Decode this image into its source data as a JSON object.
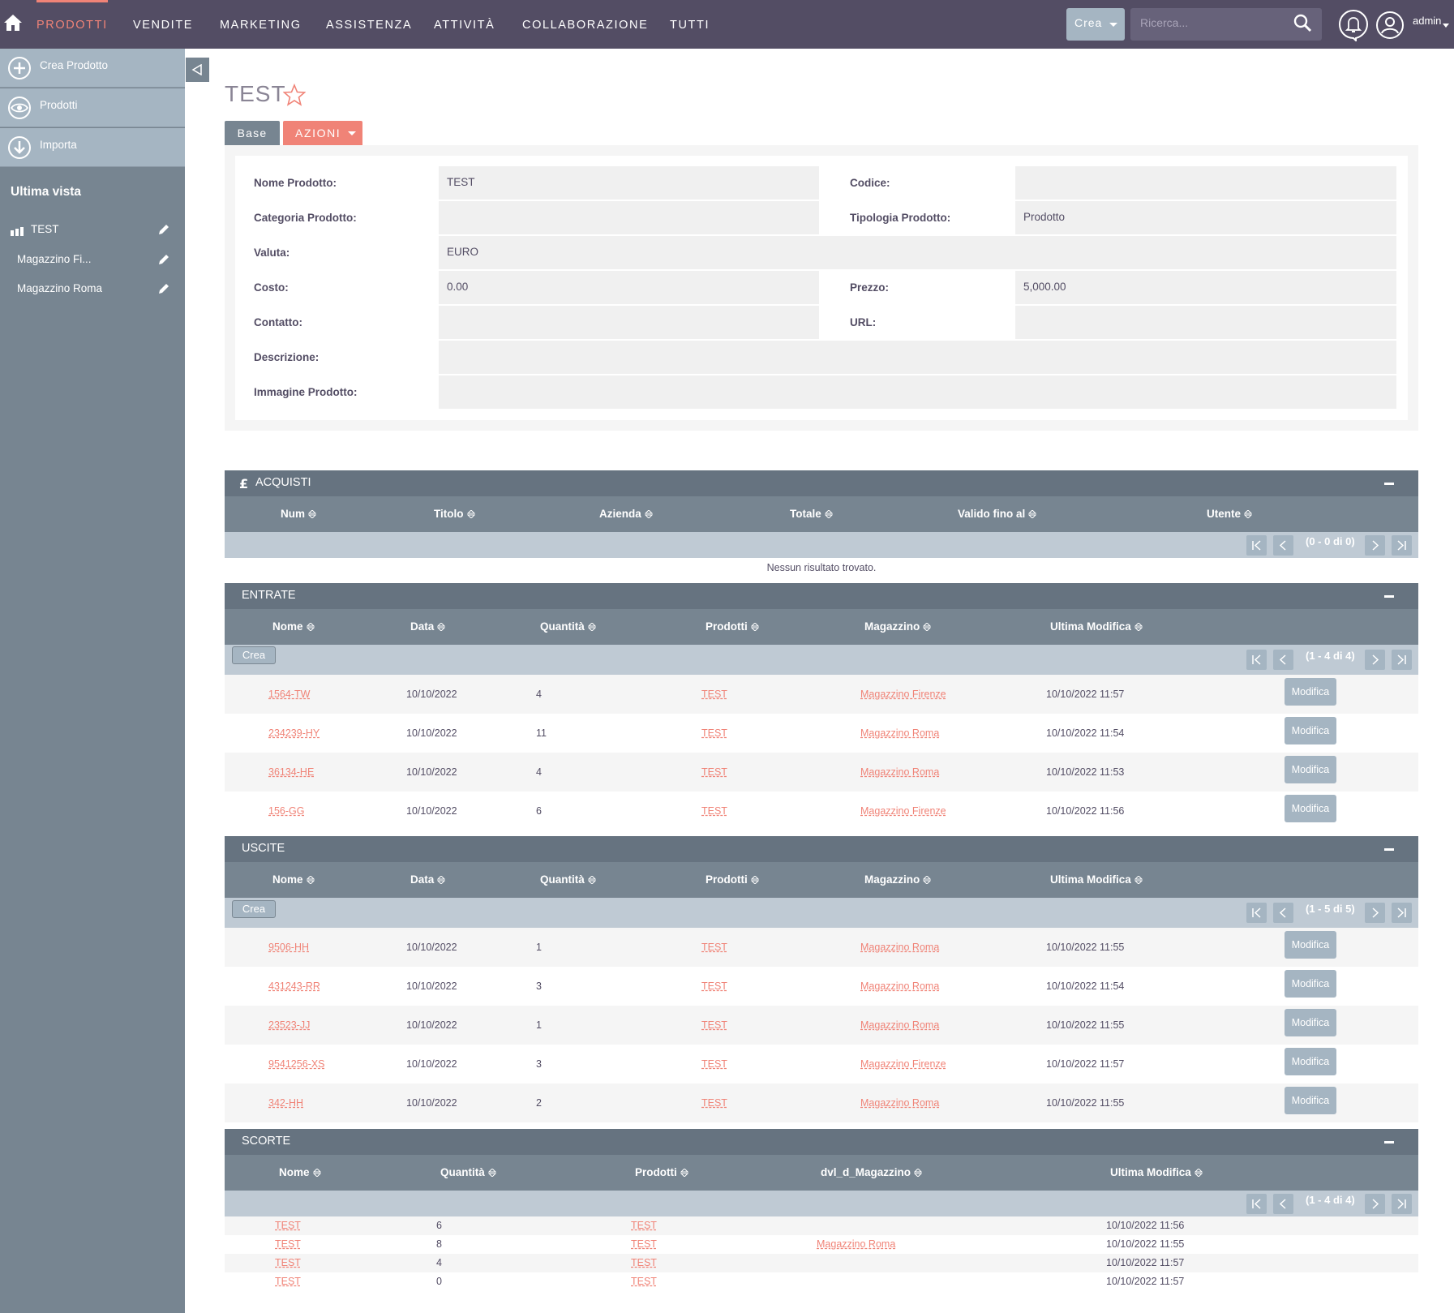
{
  "nav": {
    "items": [
      "PRODOTTI",
      "VENDITE",
      "MARKETING",
      "ASSISTENZA",
      "ATTIVITÀ",
      "COLLABORAZIONE",
      "TUTTI"
    ],
    "crea_label": "Crea",
    "search_placeholder": "Ricerca...",
    "user": "admin"
  },
  "sidebar": {
    "actions": [
      "Crea Prodotto",
      "Prodotti",
      "Importa"
    ],
    "recent_title": "Ultima vista",
    "recent": [
      "TEST",
      "Magazzino Fi...",
      "Magazzino Roma"
    ]
  },
  "page": {
    "title": "TEST",
    "tabs": {
      "base": "Base",
      "azioni": "AZIONI"
    }
  },
  "detail": {
    "nome_label": "Nome Prodotto:",
    "nome_value": "TEST",
    "codice_label": "Codice:",
    "codice_value": "",
    "categoria_label": "Categoria Prodotto:",
    "categoria_value": "",
    "tipologia_label": "Tipologia Prodotto:",
    "tipologia_value": "Prodotto",
    "valuta_label": "Valuta:",
    "valuta_value": "EURO",
    "costo_label": "Costo:",
    "costo_value": "0.00",
    "prezzo_label": "Prezzo:",
    "prezzo_value": "5,000.00",
    "contatto_label": "Contatto:",
    "contatto_value": "",
    "url_label": "URL:",
    "url_value": "",
    "descrizione_label": "Descrizione:",
    "descrizione_value": "",
    "immagine_label": "Immagine Prodotto:",
    "immagine_value": ""
  },
  "acquisti": {
    "title": "ACQUISTI",
    "columns": [
      "Num",
      "Titolo",
      "Azienda",
      "Totale",
      "Valido fino al",
      "Utente"
    ],
    "pagination": "(0 - 0 di 0)",
    "empty": "Nessun risultato trovato."
  },
  "entrate": {
    "title": "ENTRATE",
    "columns": [
      "Nome",
      "Data",
      "Quantità",
      "Prodotti",
      "Magazzino",
      "Ultima Modifica"
    ],
    "crea": "Crea",
    "pagination": "(1 - 4 di 4)",
    "edit_label": "Modifica",
    "rows": [
      [
        "1564-TW",
        "10/10/2022",
        "4",
        "TEST",
        "Magazzino Firenze",
        "10/10/2022 11:57"
      ],
      [
        "234239-HY",
        "10/10/2022",
        "11",
        "TEST",
        "Magazzino Roma",
        "10/10/2022 11:54"
      ],
      [
        "36134-HE",
        "10/10/2022",
        "4",
        "TEST",
        "Magazzino Roma",
        "10/10/2022 11:53"
      ],
      [
        "156-GG",
        "10/10/2022",
        "6",
        "TEST",
        "Magazzino Firenze",
        "10/10/2022 11:56"
      ]
    ]
  },
  "uscite": {
    "title": "USCITE",
    "columns": [
      "Nome",
      "Data",
      "Quantità",
      "Prodotti",
      "Magazzino",
      "Ultima Modifica"
    ],
    "crea": "Crea",
    "pagination": "(1 - 5 di 5)",
    "edit_label": "Modifica",
    "rows": [
      [
        "9506-HH",
        "10/10/2022",
        "1",
        "TEST",
        "Magazzino Roma",
        "10/10/2022 11:55"
      ],
      [
        "431243-RR",
        "10/10/2022",
        "3",
        "TEST",
        "Magazzino Roma",
        "10/10/2022 11:54"
      ],
      [
        "23523-JJ",
        "10/10/2022",
        "1",
        "TEST",
        "Magazzino Roma",
        "10/10/2022 11:55"
      ],
      [
        "9541256-XS",
        "10/10/2022",
        "3",
        "TEST",
        "Magazzino Firenze",
        "10/10/2022 11:57"
      ],
      [
        "342-HH",
        "10/10/2022",
        "2",
        "TEST",
        "Magazzino Roma",
        "10/10/2022 11:55"
      ]
    ]
  },
  "scorte": {
    "title": "SCORTE",
    "columns": [
      "Nome",
      "Quantità",
      "Prodotti",
      "dvl_d_Magazzino",
      "Ultima Modifica"
    ],
    "pagination": "(1 - 4 di 4)",
    "rows": [
      [
        "TEST",
        "6",
        "TEST",
        "",
        "10/10/2022 11:56"
      ],
      [
        "TEST",
        "8",
        "TEST",
        "Magazzino Roma",
        "10/10/2022 11:55"
      ],
      [
        "TEST",
        "4",
        "TEST",
        "",
        "10/10/2022 11:57"
      ],
      [
        "TEST",
        "0",
        "TEST",
        "",
        "10/10/2022 11:57"
      ]
    ]
  },
  "icons": {
    "home": "home-icon",
    "search": "search-icon",
    "bell": "bell-icon",
    "user": "user-icon",
    "plus": "plus-circle-icon",
    "eye": "eye-icon",
    "download": "download-icon",
    "pencil": "pencil-icon",
    "star": "star-icon",
    "pound": "pound-icon"
  },
  "colors": {
    "nav_bg": "#534d64",
    "accent": "#f08377",
    "sidebar_bg": "#778591",
    "panel_head": "#667380",
    "button": "#a5b5c2"
  }
}
